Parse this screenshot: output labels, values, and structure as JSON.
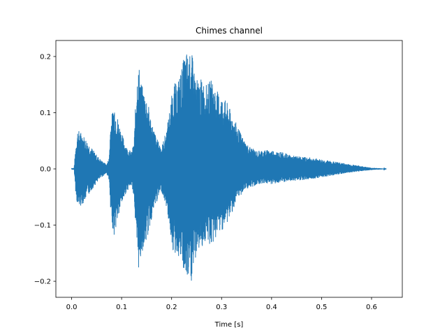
{
  "chart_data": {
    "type": "line",
    "title": "Chimes channel",
    "xlabel": "Time [s]",
    "ylabel": "",
    "xlim": [
      -0.0315,
      0.6615
    ],
    "ylim": [
      -0.2285,
      0.2285
    ],
    "x_ticks": [
      0.0,
      0.1,
      0.2,
      0.3,
      0.4,
      0.5,
      0.6
    ],
    "x_tick_labels": [
      "0.0",
      "0.1",
      "0.2",
      "0.3",
      "0.4",
      "0.5",
      "0.6"
    ],
    "y_ticks": [
      -0.2,
      -0.1,
      0.0,
      0.1,
      0.2
    ],
    "y_tick_labels": [
      "−0.2",
      "−0.1",
      "0.0",
      "0.1",
      "0.2"
    ],
    "grid": false,
    "series": [
      {
        "color": "#1f77b4",
        "envelope": {
          "t": [
            0.0,
            0.005,
            0.008,
            0.012,
            0.02,
            0.03,
            0.04,
            0.05,
            0.06,
            0.07,
            0.075,
            0.078,
            0.085,
            0.09,
            0.1,
            0.11,
            0.12,
            0.125,
            0.13,
            0.135,
            0.14,
            0.15,
            0.16,
            0.17,
            0.18,
            0.19,
            0.2,
            0.205,
            0.21,
            0.22,
            0.225,
            0.23,
            0.235,
            0.24,
            0.245,
            0.25,
            0.26,
            0.27,
            0.28,
            0.29,
            0.3,
            0.31,
            0.32,
            0.33,
            0.34,
            0.35,
            0.36,
            0.37,
            0.38,
            0.4,
            0.42,
            0.44,
            0.46,
            0.48,
            0.5,
            0.52,
            0.54,
            0.56,
            0.58,
            0.6,
            0.62,
            0.63
          ],
          "max": [
            0.001,
            0.002,
            0.04,
            0.07,
            0.065,
            0.052,
            0.038,
            0.025,
            0.015,
            0.008,
            0.02,
            0.085,
            0.12,
            0.1,
            0.065,
            0.04,
            0.03,
            0.05,
            0.165,
            0.185,
            0.15,
            0.13,
            0.085,
            0.055,
            0.04,
            0.07,
            0.13,
            0.155,
            0.15,
            0.18,
            0.2,
            0.21,
            0.2,
            0.21,
            0.18,
            0.16,
            0.16,
            0.15,
            0.16,
            0.14,
            0.13,
            0.12,
            0.1,
            0.08,
            0.06,
            0.045,
            0.038,
            0.032,
            0.034,
            0.034,
            0.03,
            0.024,
            0.022,
            0.02,
            0.017,
            0.014,
            0.011,
            0.008,
            0.005,
            0.002,
            0.001,
            0.0
          ],
          "min": [
            -0.001,
            -0.002,
            -0.04,
            -0.07,
            -0.065,
            -0.052,
            -0.038,
            -0.025,
            -0.015,
            -0.008,
            -0.02,
            -0.085,
            -0.12,
            -0.1,
            -0.065,
            -0.04,
            -0.03,
            -0.05,
            -0.155,
            -0.185,
            -0.15,
            -0.13,
            -0.09,
            -0.06,
            -0.04,
            -0.07,
            -0.13,
            -0.16,
            -0.15,
            -0.17,
            -0.19,
            -0.205,
            -0.2,
            -0.205,
            -0.18,
            -0.15,
            -0.14,
            -0.13,
            -0.14,
            -0.12,
            -0.11,
            -0.1,
            -0.08,
            -0.06,
            -0.045,
            -0.035,
            -0.035,
            -0.028,
            -0.026,
            -0.027,
            -0.025,
            -0.022,
            -0.02,
            -0.018,
            -0.015,
            -0.012,
            -0.009,
            -0.006,
            -0.004,
            -0.002,
            -0.001,
            0.0
          ]
        }
      }
    ]
  }
}
